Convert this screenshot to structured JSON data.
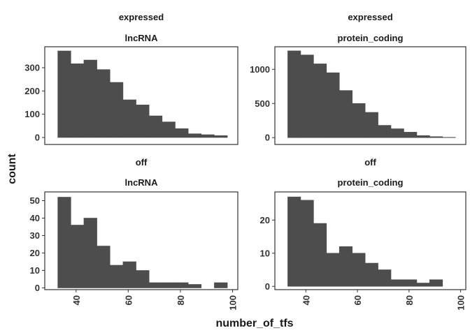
{
  "chart_data": {
    "type": "bar",
    "xlabel": "number_of_tfs",
    "ylabel": "count",
    "x_ticks": [
      40,
      60,
      80,
      100
    ],
    "xlim": [
      28,
      102
    ],
    "bin_edges": [
      33,
      38,
      43,
      48,
      53,
      58,
      63,
      68,
      73,
      78,
      83,
      88,
      93,
      98
    ],
    "panels": [
      {
        "strip_top": "expressed",
        "strip_bottom": "lncRNA",
        "ylim": [
          -30,
          390
        ],
        "y_ticks": [
          0,
          100,
          200,
          300
        ],
        "values": [
          372,
          317,
          333,
          292,
          237,
          162,
          140,
          93,
          67,
          38,
          16,
          12,
          8
        ]
      },
      {
        "strip_top": "expressed",
        "strip_bottom": "protein_coding",
        "ylim": [
          -100,
          1330
        ],
        "y_ticks": [
          0,
          500,
          1000
        ],
        "values": [
          1270,
          1210,
          1080,
          950,
          690,
          500,
          370,
          180,
          130,
          80,
          30,
          15,
          5
        ]
      },
      {
        "strip_top": "off",
        "strip_bottom": "lncRNA",
        "ylim": [
          -1,
          55
        ],
        "y_ticks": [
          0,
          10,
          20,
          30,
          40,
          50
        ],
        "values": [
          52,
          36,
          40,
          24,
          13,
          15,
          10,
          3,
          3,
          3,
          2,
          0,
          3
        ]
      },
      {
        "strip_top": "off",
        "strip_bottom": "protein_coding",
        "ylim": [
          -1,
          28.5
        ],
        "y_ticks": [
          0,
          10,
          20
        ],
        "values": [
          27,
          26,
          19,
          10,
          12,
          10,
          7,
          5,
          2,
          2,
          1,
          2,
          0
        ]
      }
    ]
  }
}
